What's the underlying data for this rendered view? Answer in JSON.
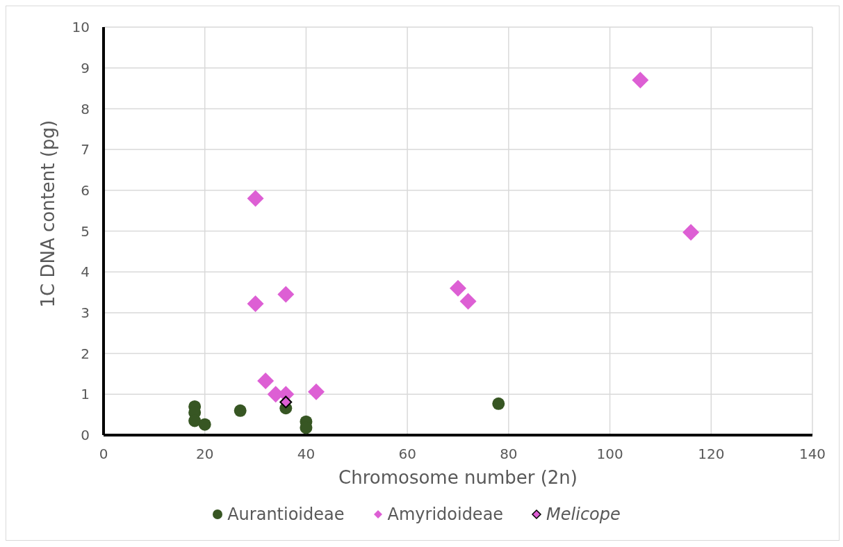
{
  "chart_data": {
    "type": "scatter",
    "xlabel": "Chromosome number (2n)",
    "ylabel": "1C DNA content (pg)",
    "xlim": [
      0,
      140
    ],
    "xticks": [
      0,
      20,
      40,
      60,
      80,
      100,
      120,
      140
    ],
    "ylim": [
      0,
      10
    ],
    "yticks": [
      0,
      1,
      2,
      3,
      4,
      5,
      6,
      7,
      8,
      9,
      10
    ],
    "grid": true,
    "legend": "bottom",
    "series": [
      {
        "name": "Aurantioideae",
        "color": "#375623",
        "marker": "circle",
        "x": [
          18,
          18,
          18,
          20,
          27,
          36,
          40,
          40,
          78
        ],
        "values": [
          0.7,
          0.55,
          0.35,
          0.26,
          0.6,
          0.66,
          0.33,
          0.18,
          0.77
        ]
      },
      {
        "name": "Amyridoideae",
        "color": "#dd5fd4",
        "marker": "diamond",
        "x": [
          30,
          30,
          36,
          70,
          72,
          106,
          116,
          32,
          34,
          36,
          42
        ],
        "values": [
          5.8,
          3.22,
          3.45,
          3.6,
          3.28,
          8.7,
          4.97,
          1.33,
          1.0,
          1.0,
          1.06
        ]
      },
      {
        "name": "Melicope",
        "color": "#dd5fd4",
        "marker": "diamond",
        "x": [
          36
        ],
        "values": [
          0.81
        ]
      }
    ]
  }
}
